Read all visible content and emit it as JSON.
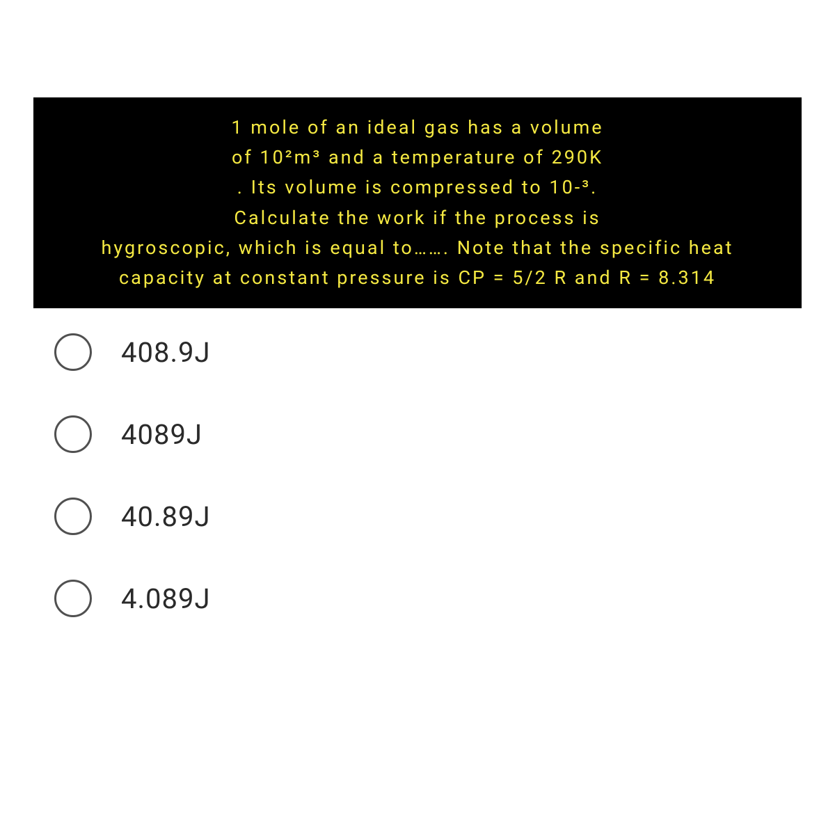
{
  "question": {
    "lines": [
      "1 mole of an ideal gas has a volume",
      "of 10²m³ and a temperature of 290K",
      ". Its volume is compressed to 10-³.",
      "Calculate the work if the process is",
      "hygroscopic, which is equal to……. Note that the specific heat",
      "capacity at constant pressure is CP = 5/2 R and R = 8.314"
    ],
    "background_color": "#000000",
    "text_color": "#f5e942",
    "fontsize": 27,
    "letter_spacing": 3
  },
  "options": [
    {
      "label": "408.9J"
    },
    {
      "label": "4089J"
    },
    {
      "label": "40.89J"
    },
    {
      "label": "4.089J"
    }
  ],
  "option_style": {
    "radio_border_color": "#505050",
    "radio_size": 54,
    "label_color": "#2a2a2a",
    "label_fontsize": 40
  },
  "background_color": "#ffffff"
}
